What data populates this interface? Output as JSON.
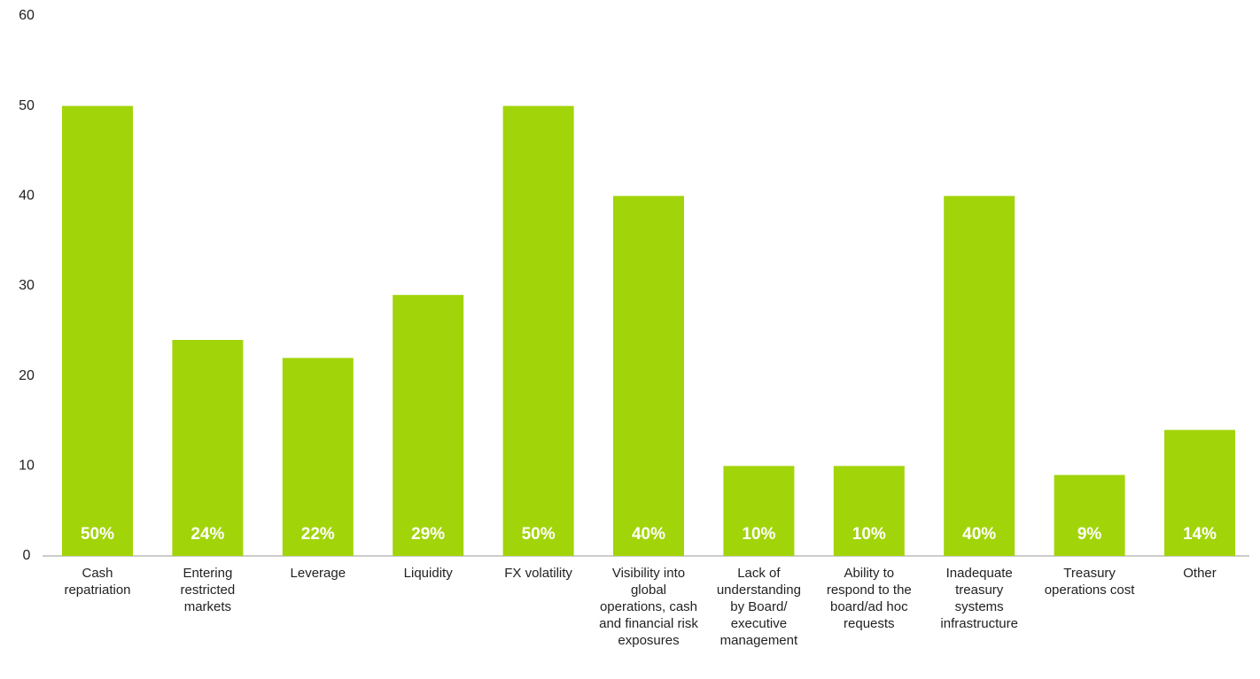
{
  "chart_data": {
    "type": "bar",
    "categories": [
      "Cash repatriation",
      "Entering restricted markets",
      "Leverage",
      "Liquidity",
      "FX volatility",
      "Visibility into global operations, cash and financial risk exposures",
      "Lack of understanding by Board/ executive management",
      "Ability to respond to the board/ad hoc requests",
      "Inadequate treasury systems infrastructure",
      "Treasury operations cost",
      "Other"
    ],
    "values": [
      50,
      24,
      22,
      29,
      50,
      40,
      10,
      10,
      40,
      9,
      14
    ],
    "value_labels": [
      "50%",
      "24%",
      "22%",
      "29%",
      "50%",
      "40%",
      "10%",
      "10%",
      "40%",
      "9%",
      "14%"
    ],
    "color": "#a2d40a",
    "ylim": [
      0,
      60
    ],
    "yticks": [
      0,
      10,
      20,
      30,
      40,
      50,
      60
    ],
    "grid": false
  }
}
